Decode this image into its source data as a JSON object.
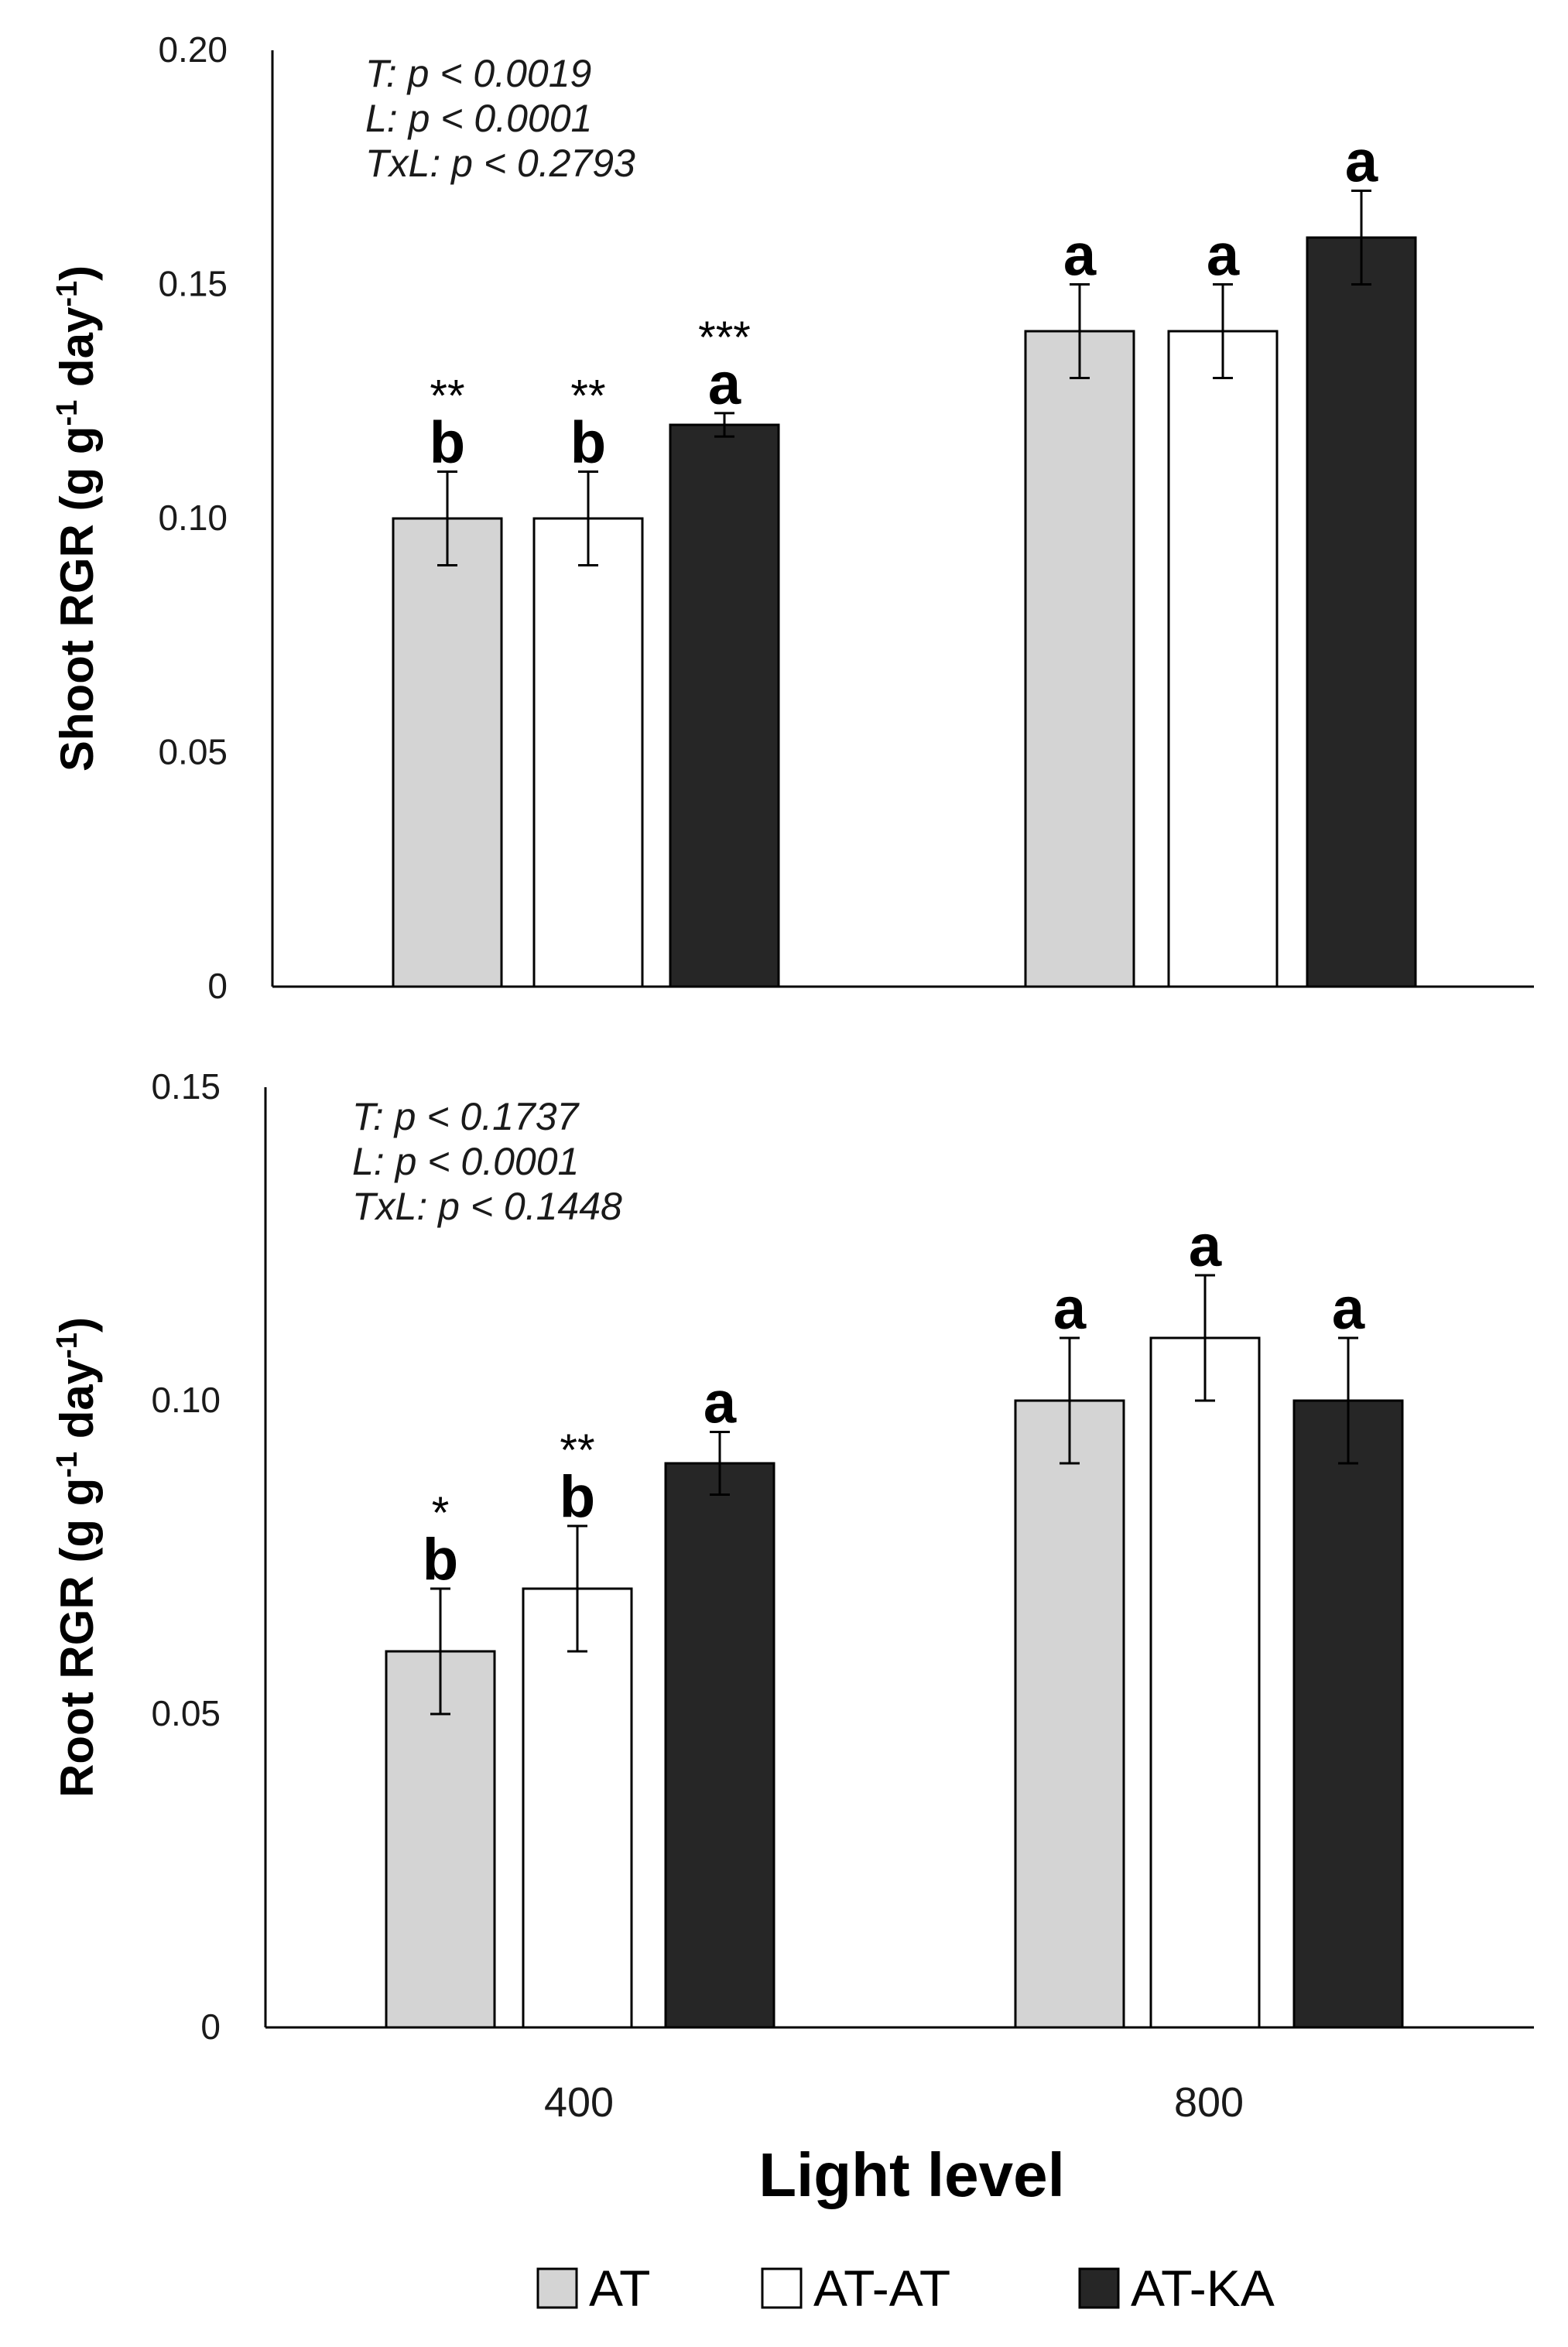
{
  "chart_data": [
    {
      "type": "bar",
      "panel": "top",
      "ylabel_main": "Shoot RGR (g g",
      "ylabel_mid": " day",
      "ylabel_close": ")",
      "ylabel_sup": "-1",
      "ylim": [
        0,
        0.2
      ],
      "yticks": [
        {
          "value": 0,
          "label": "0"
        },
        {
          "value": 0.05,
          "label": "0.05"
        },
        {
          "value": 0.1,
          "label": "0.10"
        },
        {
          "value": 0.15,
          "label": "0.15"
        },
        {
          "value": 0.2,
          "label": "0.20"
        }
      ],
      "categories": [
        "400",
        "800"
      ],
      "stats": [
        "T: p < 0.0019",
        "L: p < 0.0001",
        "TxL: p < 0.2793"
      ],
      "series": [
        {
          "name": "AT",
          "values": [
            0.1,
            0.14
          ],
          "errors": [
            0.01,
            0.01
          ],
          "letters": [
            "b",
            "a"
          ],
          "stars": [
            "**",
            ""
          ]
        },
        {
          "name": "AT-AT",
          "values": [
            0.1,
            0.14
          ],
          "errors": [
            0.01,
            0.01
          ],
          "letters": [
            "b",
            "a"
          ],
          "stars": [
            "**",
            ""
          ]
        },
        {
          "name": "AT-KA",
          "values": [
            0.12,
            0.16
          ],
          "errors": [
            0.0025,
            0.01
          ],
          "letters": [
            "a",
            "a"
          ],
          "stars": [
            "***",
            ""
          ]
        }
      ]
    },
    {
      "type": "bar",
      "panel": "bottom",
      "ylabel_main": "Root RGR (g g",
      "ylabel_mid": " day",
      "ylabel_close": ")",
      "ylabel_sup": "-1",
      "ylim": [
        0,
        0.15
      ],
      "yticks": [
        {
          "value": 0,
          "label": "0"
        },
        {
          "value": 0.05,
          "label": "0.05"
        },
        {
          "value": 0.1,
          "label": "0.10"
        },
        {
          "value": 0.15,
          "label": "0.15"
        }
      ],
      "categories": [
        "400",
        "800"
      ],
      "stats": [
        "T: p < 0.1737",
        "L: p < 0.0001",
        "TxL: p < 0.1448"
      ],
      "series": [
        {
          "name": "AT",
          "values": [
            0.06,
            0.1
          ],
          "errors": [
            0.01,
            0.01
          ],
          "letters": [
            "b",
            "a"
          ],
          "stars": [
            "*",
            ""
          ]
        },
        {
          "name": "AT-AT",
          "values": [
            0.07,
            0.11
          ],
          "errors": [
            0.01,
            0.01
          ],
          "letters": [
            "b",
            "a"
          ],
          "stars": [
            "**",
            ""
          ]
        },
        {
          "name": "AT-KA",
          "values": [
            0.09,
            0.1
          ],
          "errors": [
            0.005,
            0.01
          ],
          "letters": [
            "a",
            "a"
          ],
          "stars": [
            "",
            ""
          ]
        }
      ]
    }
  ],
  "xlabel": "Light level",
  "legend": {
    "placement": "bottom",
    "entries": [
      {
        "name": "AT",
        "color": "#d4d4d4"
      },
      {
        "name": "AT-AT",
        "color": "#ffffff"
      },
      {
        "name": "AT-KA",
        "color": "#262626"
      }
    ]
  }
}
